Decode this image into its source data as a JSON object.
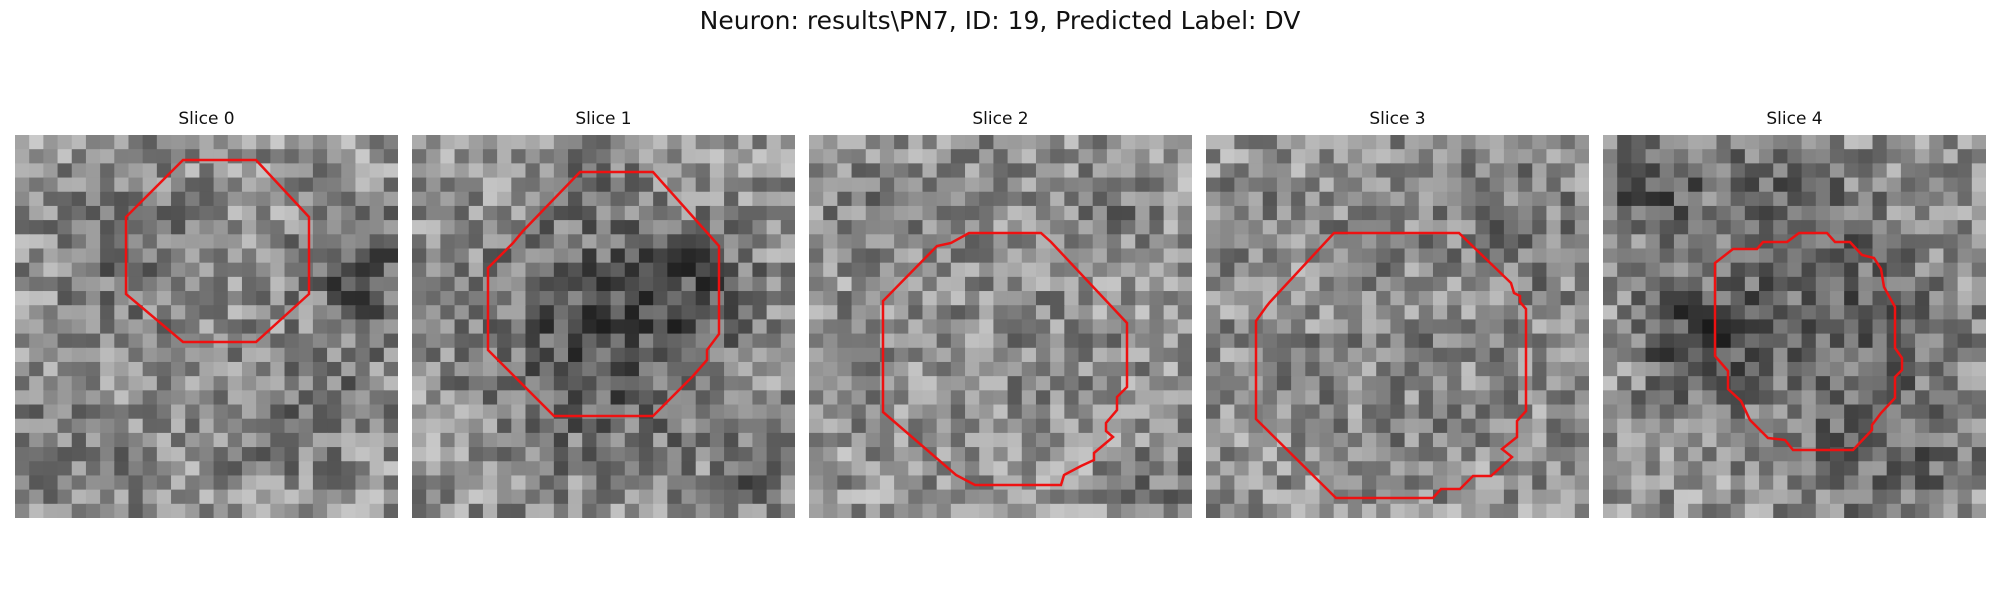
{
  "figure": {
    "title": "Neuron: results\\PN7, ID: 19, Predicted Label: DV"
  },
  "colors": {
    "contour": "#ee1111",
    "background": "#ffffff"
  },
  "panels": [
    {
      "title": "Slice 0"
    },
    {
      "title": "Slice 1"
    },
    {
      "title": "Slice 2"
    },
    {
      "title": "Slice 3"
    },
    {
      "title": "Slice 4"
    }
  ]
}
